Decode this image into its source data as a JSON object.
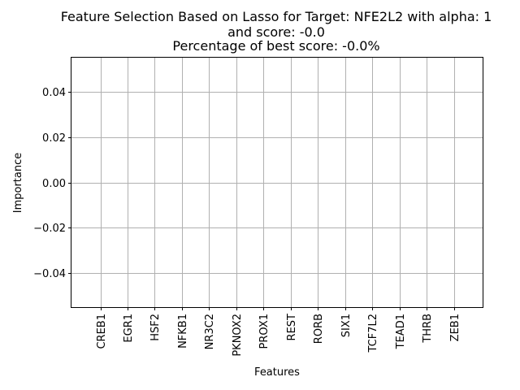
{
  "chart_data": {
    "type": "bar",
    "title_lines": [
      "Feature Selection Based on Lasso for Target: NFE2L2 with alpha: 1",
      "and score: -0.0",
      "Percentage of best score: -0.0%"
    ],
    "xlabel": "Features",
    "ylabel": "Importance",
    "categories": [
      "CREB1",
      "EGR1",
      "HSF2",
      "NFKB1",
      "NR3C2",
      "PKNOX2",
      "PROX1",
      "REST",
      "RORB",
      "SIX1",
      "TCF7L2",
      "TEAD1",
      "THRB",
      "ZEB1"
    ],
    "values": [
      0,
      0,
      0,
      0,
      0,
      0,
      0,
      0,
      0,
      0,
      0,
      0,
      0,
      0
    ],
    "yticks": [
      0.04,
      0.02,
      0.0,
      -0.02,
      -0.04
    ],
    "ytick_labels": [
      "0.04",
      "0.02",
      "0.00",
      "−0.02",
      "−0.04"
    ],
    "ylim": [
      -0.055,
      0.055
    ],
    "grid": true,
    "colors": {
      "axis": "#000000",
      "grid": "#b0b0b0",
      "bar": "#1f77b4"
    }
  }
}
